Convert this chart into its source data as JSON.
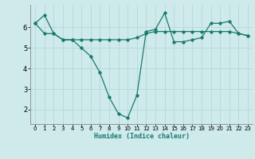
{
  "xlabel": "Humidex (Indice chaleur)",
  "line1_x": [
    0,
    1,
    2,
    3,
    4,
    5,
    6,
    7,
    8,
    9,
    10,
    11,
    12,
    13,
    14,
    15,
    16,
    17,
    18,
    19,
    20,
    21,
    22,
    23
  ],
  "line1_y": [
    6.2,
    6.6,
    5.7,
    5.4,
    5.4,
    5.0,
    4.6,
    3.8,
    2.6,
    1.8,
    1.6,
    2.7,
    5.8,
    5.9,
    6.7,
    5.3,
    5.3,
    5.4,
    5.5,
    6.2,
    6.2,
    6.3,
    5.7,
    5.6
  ],
  "line2_x": [
    0,
    1,
    2,
    3,
    4,
    5,
    6,
    7,
    8,
    9,
    10,
    11,
    12,
    13,
    14,
    15,
    16,
    17,
    18,
    19,
    20,
    21,
    22,
    23
  ],
  "line2_y": [
    6.2,
    5.7,
    5.7,
    5.4,
    5.4,
    5.4,
    5.4,
    5.4,
    5.4,
    5.4,
    5.4,
    5.5,
    5.7,
    5.8,
    5.8,
    5.8,
    5.8,
    5.8,
    5.8,
    5.8,
    5.8,
    5.8,
    5.7,
    5.6
  ],
  "line_color": "#1a7a6e",
  "bg_color": "#ceeaea",
  "grid_color": "#b8d8d8",
  "ylim": [
    1.3,
    7.1
  ],
  "yticks": [
    2,
    3,
    4,
    5,
    6
  ],
  "xlim": [
    -0.5,
    23.5
  ],
  "xlabel_fontsize": 6.0,
  "tick_fontsize": 5.0,
  "ytick_fontsize": 6.0
}
